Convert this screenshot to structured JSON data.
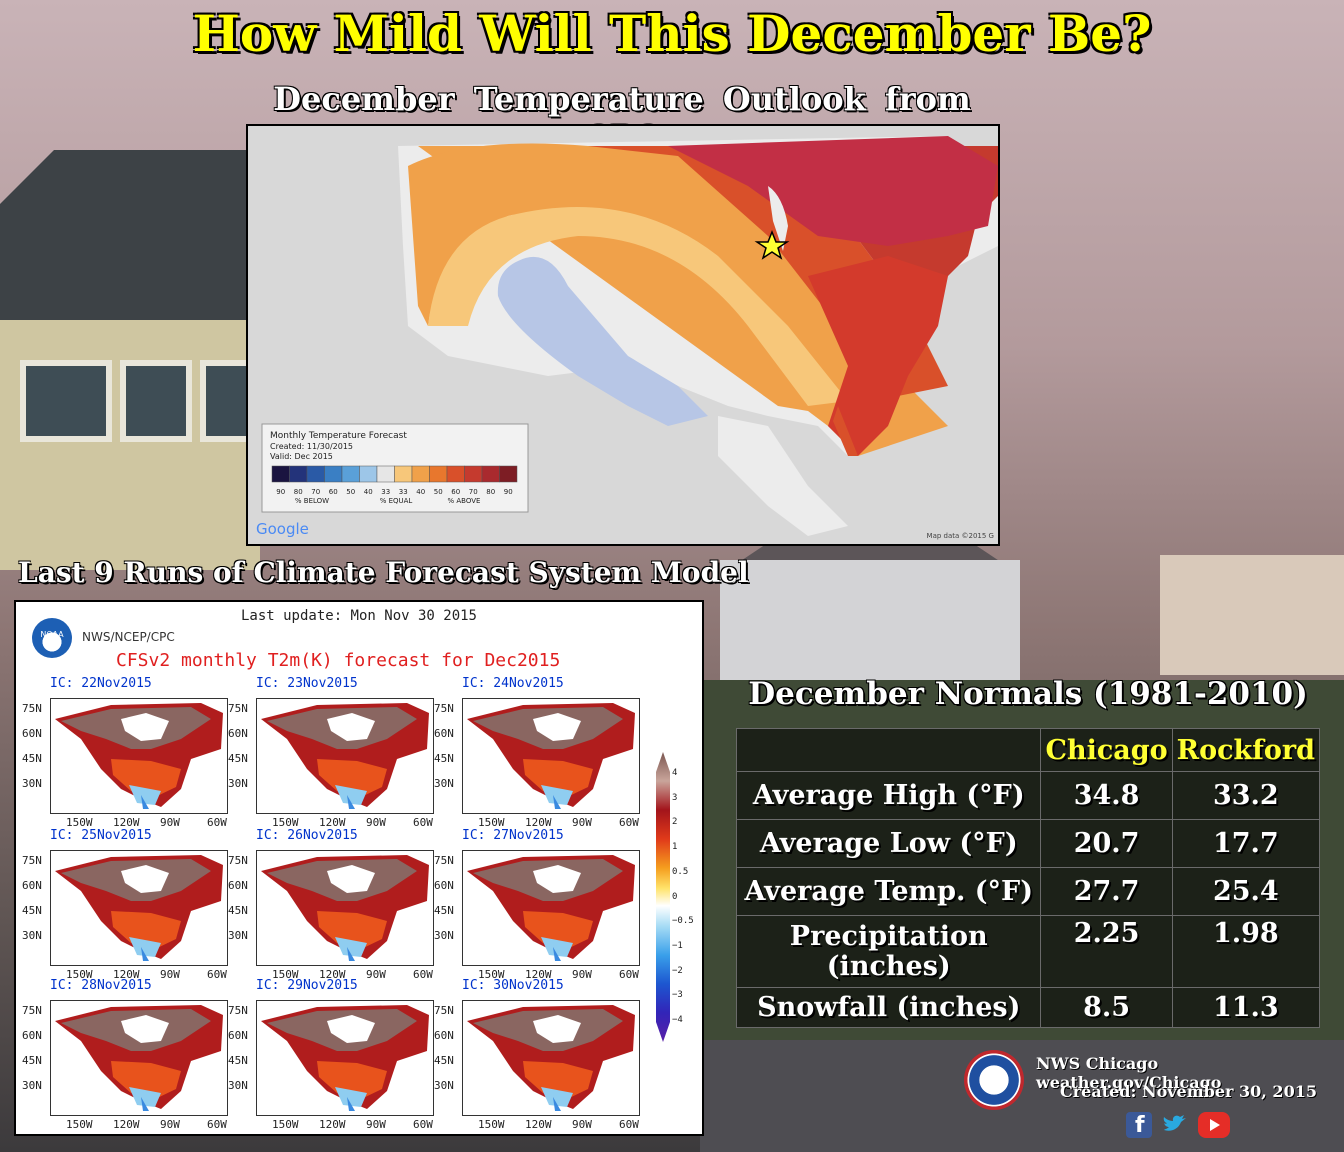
{
  "title": "How Mild Will This December Be?",
  "cpc": {
    "subtitle": "December Temperature Outlook from CPC",
    "legend_title": "Monthly Temperature Forecast",
    "legend_created": "Created: 11/30/2015",
    "legend_valid": "Valid: Dec 2015",
    "legend_ticks": [
      "90",
      "80",
      "70",
      "60",
      "50",
      "40",
      "33",
      "33",
      "40",
      "50",
      "60",
      "70",
      "80",
      "90"
    ],
    "legend_below": "% BELOW",
    "legend_equal": "% EQUAL",
    "legend_above": "% ABOVE",
    "legend_colors": [
      "#1a1440",
      "#23337a",
      "#2a5aa6",
      "#3a7fc4",
      "#5aa0d8",
      "#9dc6e8",
      "#e6e6e6",
      "#f7c77a",
      "#f0a14a",
      "#e8772d",
      "#d9502a",
      "#c53a2e",
      "#a92a2e",
      "#7d1d24"
    ],
    "google": "Google",
    "mapdata": "Map data ©2015 G"
  },
  "cfs": {
    "title": "Last 9 Runs of Climate Forecast System Model",
    "update": "Last update: Mon Nov 30 2015",
    "org": "NWS/NCEP/CPC",
    "noaa": "NOAA",
    "heading": "CFSv2 monthly T2m(K) forecast for Dec2015",
    "runs": [
      "IC: 22Nov2015",
      "IC: 23Nov2015",
      "IC: 24Nov2015",
      "IC: 25Nov2015",
      "IC: 26Nov2015",
      "IC: 27Nov2015",
      "IC: 28Nov2015",
      "IC: 29Nov2015",
      "IC: 30Nov2015"
    ],
    "lat_labels": [
      "75N",
      "60N",
      "45N",
      "30N"
    ],
    "lon_labels": [
      "150W",
      "120W",
      "90W",
      "60W"
    ],
    "colorbar_labels": [
      "4",
      "3",
      "2",
      "1",
      "0.5",
      "0",
      "−0.5",
      "−1",
      "−2",
      "−3",
      "−4"
    ]
  },
  "normals": {
    "title": "December Normals (1981-2010)",
    "columns": [
      "Chicago",
      "Rockford"
    ],
    "rows": [
      {
        "label": "Average High (°F)",
        "chicago": "34.8",
        "rockford": "33.2"
      },
      {
        "label": "Average Low (°F)",
        "chicago": "20.7",
        "rockford": "17.7"
      },
      {
        "label": "Average Temp. (°F)",
        "chicago": "27.7",
        "rockford": "25.4"
      },
      {
        "label": "Precipitation (inches)",
        "chicago": "2.25",
        "rockford": "1.98"
      },
      {
        "label": "Snowfall (inches)",
        "chicago": "8.5",
        "rockford": "11.3"
      }
    ]
  },
  "footer": {
    "office": "NWS Chicago",
    "website": "weather.gov/Chicago",
    "created_label": "Created:",
    "created_date": "November 30, 2015",
    "social_icons": [
      "facebook-icon",
      "twitter-icon",
      "youtube-icon"
    ]
  }
}
